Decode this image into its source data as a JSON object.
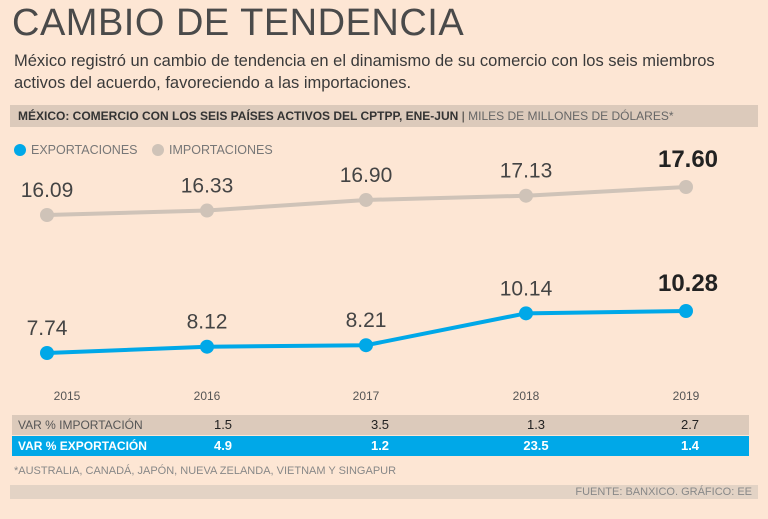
{
  "title": "CAMBIO DE TENDENCIA",
  "subtitle": "México registró un cambio de tendencia en el dinamismo de su comercio con los seis miembros activos del acuerdo, favoreciendo a las importaciones.",
  "band": {
    "title": "MÉXICO: COMERCIO CON LOS SEIS PAÍSES ACTIVOS DEL CPTPP, ENE-JUN",
    "separator": "|",
    "units": "MILES DE MILLONES DE DÓLARES*"
  },
  "colors": {
    "export": "#00a8e8",
    "import": "#cfc3b8",
    "background": "#fde6d4"
  },
  "chart_data": {
    "type": "line",
    "title": "MÉXICO: COMERCIO CON LOS SEIS PAÍSES ACTIVOS DEL CPTPP, ENE-JUN",
    "ylabel": "MILES DE MILLONES DE DÓLARES*",
    "x": [
      "2015",
      "2016",
      "2017",
      "2018",
      "2019"
    ],
    "series": [
      {
        "name": "EXPORTACIONES",
        "values": [
          7.74,
          8.12,
          8.21,
          10.14,
          10.28
        ],
        "labels": [
          "7.74",
          "8.12",
          "8.21",
          "10.14",
          "10.28"
        ]
      },
      {
        "name": "IMPORTACIONES",
        "values": [
          16.09,
          16.33,
          16.9,
          17.13,
          17.6
        ],
        "labels": [
          "16.09",
          "16.33",
          "16.90",
          "17.13",
          "17.60"
        ]
      }
    ],
    "legend": "top-left"
  },
  "table": {
    "rows": [
      {
        "label": "VAR % IMPORTACIÓN",
        "values": [
          "1.5",
          "3.5",
          "1.3",
          "2.7"
        ]
      },
      {
        "label": "VAR % EXPORTACIÓN",
        "values": [
          "4.9",
          "1.2",
          "23.5",
          "1.4"
        ]
      }
    ]
  },
  "footnote": "*AUSTRALIA, CANADÁ, JAPÓN, NUEVA ZELANDA, VIETNAM Y SINGAPUR",
  "source": "FUENTE: BANXICO.  GRÁFICO: EE"
}
